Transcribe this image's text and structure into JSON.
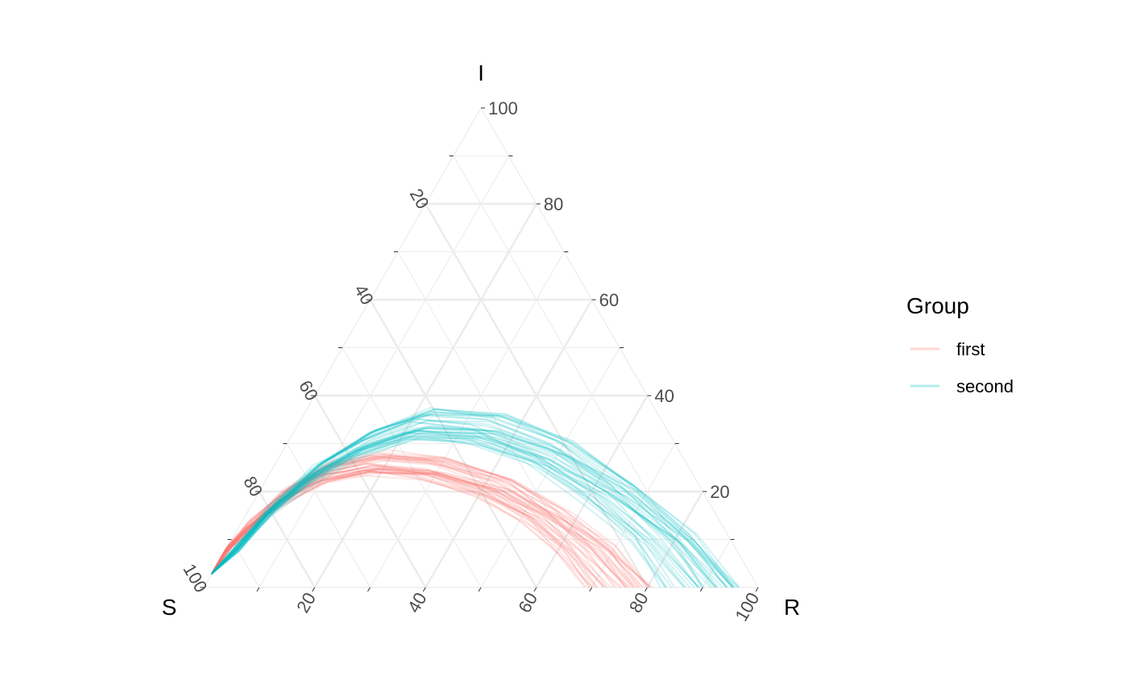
{
  "chart_data": {
    "type": "ternary-line",
    "axes": {
      "left": {
        "label": "S",
        "ticks": [
          "20",
          "40",
          "60",
          "80",
          "100"
        ]
      },
      "top": {
        "label": "I",
        "ticks": [
          "20",
          "40",
          "60",
          "80",
          "100"
        ]
      },
      "right": {
        "label": "R",
        "ticks": [
          "20",
          "40",
          "60",
          "80",
          "100"
        ]
      }
    },
    "range": [
      0,
      100
    ],
    "grid": true,
    "legend": {
      "title": "Group",
      "placement": "right",
      "entries": [
        {
          "name": "first",
          "color": "#F8766D"
        },
        {
          "name": "second",
          "color": "#00BFC4"
        }
      ]
    },
    "series": [
      {
        "name": "first",
        "color": "#F8766D",
        "alpha": 0.18,
        "n_trajectories": 40,
        "mean_path_SIR": [
          [
            97,
            3,
            0
          ],
          [
            92,
            8,
            0
          ],
          [
            85,
            13,
            2
          ],
          [
            76,
            19,
            5
          ],
          [
            66,
            24,
            10
          ],
          [
            56,
            26,
            18
          ],
          [
            46,
            25,
            29
          ],
          [
            37,
            21,
            42
          ],
          [
            31,
            15,
            54
          ],
          [
            27,
            8,
            65
          ],
          [
            25,
            0,
            75
          ]
        ]
      },
      {
        "name": "second",
        "color": "#00BFC4",
        "alpha": 0.18,
        "n_trajectories": 40,
        "mean_path_SIR": [
          [
            97,
            3,
            0
          ],
          [
            90,
            8,
            2
          ],
          [
            80,
            16,
            4
          ],
          [
            68,
            24,
            8
          ],
          [
            56,
            30,
            14
          ],
          [
            44,
            34,
            22
          ],
          [
            33,
            33,
            34
          ],
          [
            24,
            28,
            48
          ],
          [
            17,
            20,
            63
          ],
          [
            12,
            10,
            78
          ],
          [
            10,
            0,
            90
          ]
        ]
      }
    ]
  }
}
